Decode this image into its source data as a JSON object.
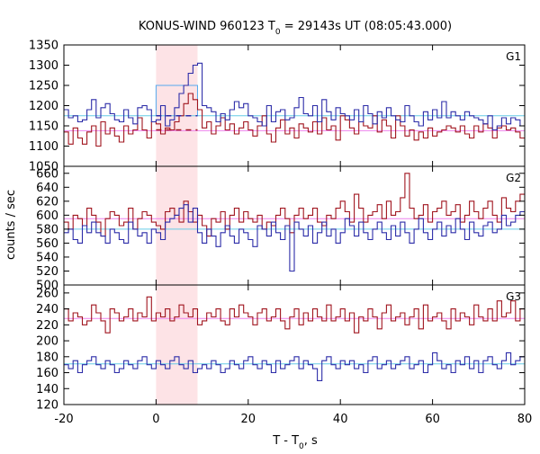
{
  "chart_data": {
    "type": "line",
    "title_main": "KONUS-WIND 960123 T",
    "title_sub": "0",
    "title_rest": " = 29143s UT (08:05:43.000)",
    "xlabel_main": "T - T",
    "xlabel_sub": "0",
    "xlabel_rest": ", s",
    "ylabel": "counts / sec",
    "xlim": [
      -20,
      80
    ],
    "xticks": [
      "-20",
      "0",
      "20",
      "40",
      "60",
      "80"
    ],
    "x_tick_values": [
      -20,
      0,
      20,
      40,
      60,
      80
    ],
    "highlight": {
      "x0": 0,
      "x1": 9,
      "color": "#fde3e6"
    },
    "colors": {
      "dark_red": "#a0141e",
      "dark_blue": "#2c2ca8",
      "pink_level": "#ee82ee",
      "cyan_level": "#66cce6",
      "cyan_burst": "#55aaee"
    },
    "bin_width": 1.0,
    "x_start": -20,
    "panels": [
      {
        "name": "G1",
        "ylim": [
          1050,
          1350
        ],
        "yticks": [
          "1050",
          "1100",
          "1150",
          "1200",
          "1250",
          "1300",
          "1350"
        ],
        "y_tick_values": [
          1050,
          1100,
          1150,
          1200,
          1250,
          1300,
          1350
        ],
        "red_level": 1138,
        "blue_level": 1175,
        "burst_level": {
          "x0": 0,
          "x1": 9,
          "value": 1250
        },
        "dashed_levels": [
          {
            "x0": 0,
            "x1": 9,
            "value": 1140,
            "color": "dark_red"
          },
          {
            "x0": 0,
            "x1": 9,
            "value": 1175,
            "color": "dark_blue"
          }
        ],
        "red": [
          1135,
          1105,
          1145,
          1120,
          1105,
          1135,
          1150,
          1100,
          1160,
          1130,
          1145,
          1125,
          1110,
          1150,
          1130,
          1140,
          1170,
          1140,
          1120,
          1160,
          1155,
          1130,
          1145,
          1140,
          1160,
          1175,
          1205,
          1230,
          1215,
          1190,
          1145,
          1160,
          1130,
          1150,
          1170,
          1140,
          1155,
          1130,
          1145,
          1160,
          1140,
          1125,
          1150,
          1175,
          1130,
          1110,
          1145,
          1165,
          1130,
          1145,
          1120,
          1155,
          1145,
          1135,
          1160,
          1130,
          1170,
          1140,
          1150,
          1115,
          1175,
          1165,
          1145,
          1130,
          1160,
          1150,
          1145,
          1175,
          1135,
          1165,
          1150,
          1120,
          1175,
          1150,
          1125,
          1140,
          1115,
          1135,
          1120,
          1145,
          1125,
          1135,
          1140,
          1150,
          1145,
          1135,
          1150,
          1130,
          1120,
          1150,
          1135,
          1155,
          1145,
          1120,
          1145,
          1150,
          1140,
          1145,
          1135,
          1120
        ],
        "blue": [
          1190,
          1170,
          1175,
          1160,
          1165,
          1190,
          1215,
          1170,
          1195,
          1205,
          1180,
          1165,
          1160,
          1190,
          1170,
          1155,
          1195,
          1200,
          1190,
          1160,
          1165,
          1200,
          1150,
          1165,
          1195,
          1230,
          1250,
          1280,
          1300,
          1305,
          1200,
          1195,
          1185,
          1160,
          1180,
          1165,
          1190,
          1210,
          1195,
          1205,
          1175,
          1170,
          1160,
          1150,
          1200,
          1160,
          1185,
          1190,
          1165,
          1170,
          1195,
          1220,
          1180,
          1175,
          1200,
          1160,
          1215,
          1185,
          1165,
          1195,
          1180,
          1175,
          1165,
          1190,
          1160,
          1200,
          1180,
          1155,
          1185,
          1170,
          1195,
          1175,
          1165,
          1160,
          1200,
          1175,
          1160,
          1150,
          1185,
          1165,
          1190,
          1170,
          1210,
          1170,
          1185,
          1175,
          1165,
          1185,
          1175,
          1170,
          1165,
          1155,
          1175,
          1140,
          1150,
          1170,
          1155,
          1170,
          1165,
          1150
        ]
      },
      {
        "name": "G2",
        "ylim": [
          500,
          670
        ],
        "yticks": [
          "500",
          "520",
          "540",
          "560",
          "580",
          "600",
          "620",
          "640",
          "660"
        ],
        "y_tick_values": [
          500,
          520,
          540,
          560,
          580,
          600,
          620,
          640,
          660
        ],
        "red_level": 595,
        "blue_level": 580,
        "red": [
          590,
          580,
          600,
          595,
          585,
          610,
          600,
          590,
          570,
          595,
          605,
          600,
          585,
          590,
          610,
          580,
          595,
          605,
          600,
          590,
          585,
          580,
          605,
          610,
          600,
          590,
          620,
          605,
          590,
          600,
          585,
          570,
          595,
          590,
          605,
          580,
          600,
          610,
          590,
          605,
          595,
          590,
          600,
          580,
          590,
          585,
          600,
          610,
          595,
          575,
          600,
          610,
          595,
          600,
          610,
          590,
          585,
          600,
          595,
          610,
          620,
          605,
          590,
          630,
          610,
          590,
          600,
          605,
          615,
          595,
          620,
          600,
          605,
          625,
          660,
          610,
          595,
          600,
          615,
          590,
          605,
          610,
          620,
          600,
          605,
          615,
          590,
          600,
          620,
          605,
          595,
          610,
          620,
          600,
          590,
          625,
          610,
          605,
          620,
          630
        ],
        "blue": [
          575,
          580,
          565,
          560,
          585,
          575,
          590,
          575,
          570,
          560,
          580,
          575,
          565,
          560,
          590,
          580,
          570,
          575,
          560,
          580,
          575,
          565,
          590,
          595,
          600,
          610,
          615,
          590,
          610,
          575,
          560,
          580,
          570,
          555,
          575,
          585,
          570,
          560,
          580,
          575,
          565,
          555,
          585,
          580,
          570,
          590,
          575,
          565,
          585,
          520,
          590,
          580,
          570,
          585,
          560,
          575,
          590,
          570,
          580,
          560,
          575,
          595,
          585,
          570,
          590,
          575,
          565,
          580,
          590,
          575,
          565,
          585,
          570,
          590,
          575,
          560,
          580,
          595,
          575,
          565,
          580,
          590,
          570,
          585,
          575,
          595,
          580,
          565,
          590,
          575,
          570,
          585,
          590,
          575,
          580,
          600,
          585,
          590,
          600,
          605
        ]
      },
      {
        "name": "G3",
        "ylim": [
          120,
          270
        ],
        "yticks": [
          "120",
          "140",
          "160",
          "180",
          "200",
          "220",
          "240",
          "260"
        ],
        "y_tick_values": [
          120,
          140,
          160,
          180,
          200,
          220,
          240,
          260
        ],
        "red_level": 228,
        "blue_level": 171,
        "red": [
          240,
          225,
          235,
          230,
          220,
          225,
          245,
          235,
          225,
          210,
          240,
          235,
          225,
          230,
          240,
          225,
          235,
          230,
          255,
          225,
          235,
          230,
          240,
          225,
          230,
          245,
          235,
          230,
          240,
          220,
          225,
          235,
          230,
          240,
          225,
          220,
          240,
          230,
          245,
          235,
          230,
          220,
          235,
          240,
          225,
          230,
          240,
          225,
          215,
          230,
          240,
          220,
          235,
          225,
          240,
          230,
          225,
          245,
          225,
          230,
          240,
          225,
          235,
          210,
          230,
          225,
          240,
          230,
          215,
          235,
          245,
          225,
          230,
          235,
          220,
          230,
          240,
          215,
          245,
          225,
          230,
          235,
          225,
          215,
          240,
          225,
          235,
          230,
          220,
          245,
          230,
          225,
          240,
          225,
          250,
          230,
          235,
          250,
          225,
          240
        ],
        "blue": [
          170,
          165,
          175,
          160,
          170,
          175,
          180,
          170,
          165,
          175,
          170,
          160,
          165,
          175,
          170,
          165,
          175,
          180,
          170,
          165,
          175,
          170,
          165,
          175,
          180,
          170,
          165,
          175,
          160,
          165,
          170,
          165,
          175,
          170,
          160,
          165,
          175,
          170,
          165,
          175,
          180,
          170,
          165,
          175,
          170,
          160,
          175,
          165,
          170,
          175,
          180,
          165,
          175,
          170,
          165,
          150,
          175,
          180,
          170,
          165,
          175,
          170,
          175,
          165,
          170,
          160,
          175,
          180,
          165,
          170,
          175,
          165,
          170,
          175,
          180,
          165,
          170,
          175,
          160,
          170,
          185,
          175,
          165,
          170,
          160,
          175,
          170,
          180,
          165,
          175,
          160,
          175,
          180,
          170,
          165,
          175,
          185,
          170,
          175,
          180
        ]
      }
    ]
  }
}
